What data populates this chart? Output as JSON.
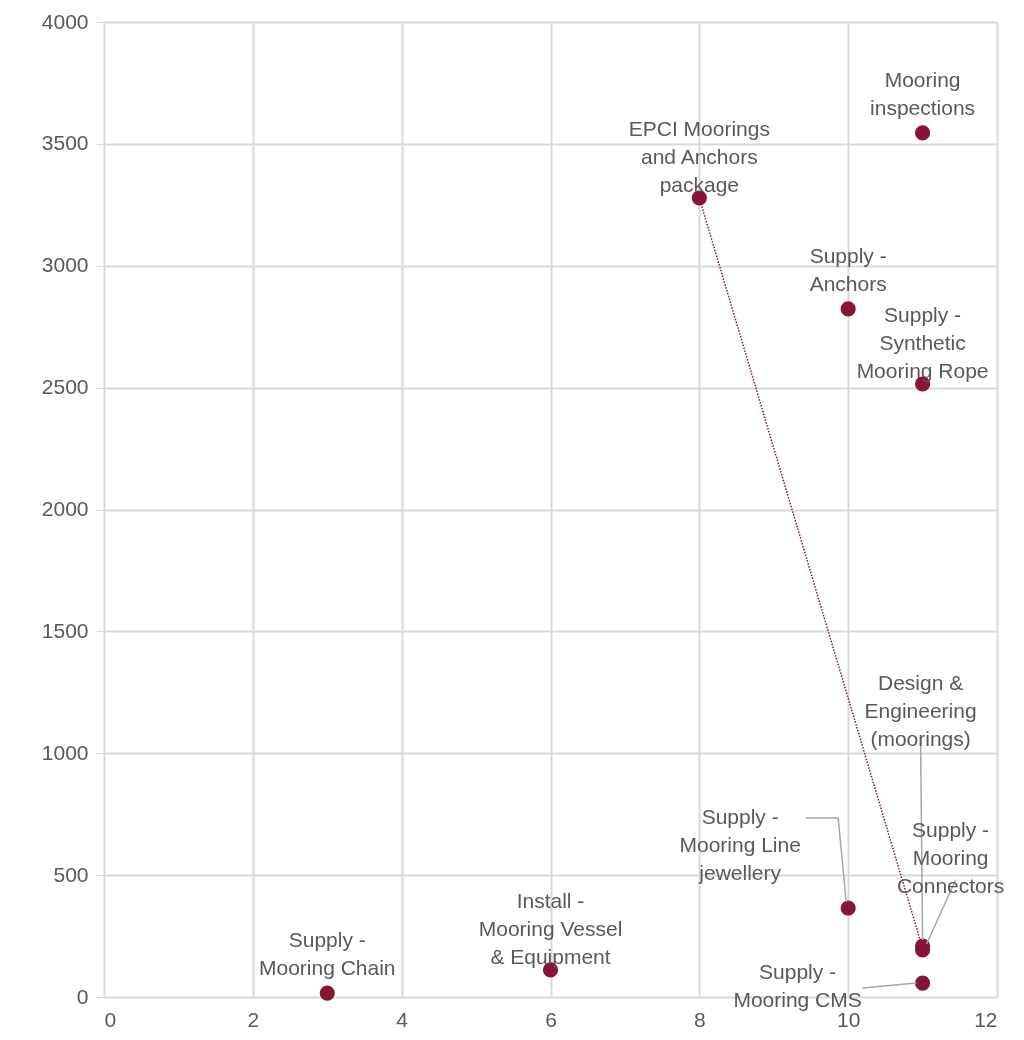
{
  "chart_data": {
    "type": "scatter",
    "xlim": [
      0,
      12
    ],
    "xticks": [
      0,
      2,
      4,
      6,
      8,
      10,
      12
    ],
    "ylim": [
      0,
      4000
    ],
    "yticks": [
      0,
      500,
      1000,
      1500,
      2000,
      2500,
      3000,
      3500,
      4000
    ],
    "grid": true,
    "marker": "circle",
    "series": [
      {
        "color": "#861634",
        "x": [
          3,
          6,
          8,
          10,
          11,
          11,
          10,
          11,
          11,
          11
        ],
        "values": [
          16,
          111,
          3278,
          2823,
          3545,
          2515,
          365,
          209,
          193,
          57
        ]
      },
      {
        "type": "line",
        "color": "#861634",
        "line_style": "dotted",
        "x": [
          8,
          11
        ],
        "values": [
          3278,
          200
        ]
      }
    ],
    "annotations": [
      {
        "text": "Supply -\nMooring Chain",
        "x": 3,
        "y": 16
      },
      {
        "text": "Install -\nMooring Vessel\n& Equipment",
        "x": 6,
        "y": 111
      },
      {
        "text": "EPCI Moorings\nand Anchors\npackage",
        "x": 8,
        "y": 3278
      },
      {
        "text": "Supply -\nAnchors",
        "x": 10,
        "y": 2823
      },
      {
        "text": "Mooring\ninspections",
        "x": 11,
        "y": 3545
      },
      {
        "text": "Supply -\nSynthetic\nMooring Rope",
        "x": 11,
        "y": 2515
      },
      {
        "text": "Supply -\nMooring Line\njewellery",
        "x": 10,
        "y": 365
      },
      {
        "text": "Design &\nEngineering\n(moorings)",
        "x": 11,
        "y": 209
      },
      {
        "text": "Supply -\nMooring\nConnectors",
        "x": 11,
        "y": 193
      },
      {
        "text": "Supply -\nMooring CMS",
        "x": 11,
        "y": 57
      }
    ]
  }
}
